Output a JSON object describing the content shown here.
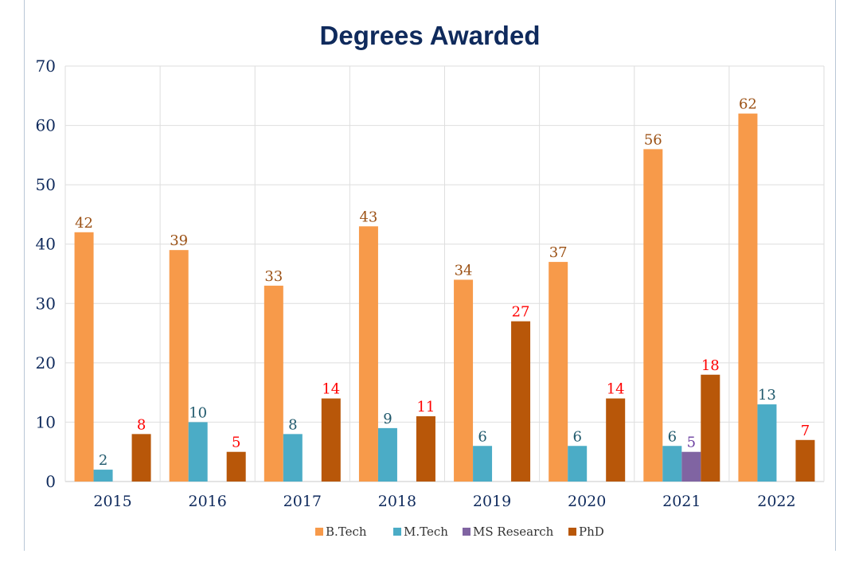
{
  "chart_data": {
    "type": "bar",
    "title": "Degrees Awarded",
    "xlabel": "",
    "ylabel": "",
    "ylim": [
      0,
      70
    ],
    "yticks": [
      0,
      10,
      20,
      30,
      40,
      50,
      60,
      70
    ],
    "grid": true,
    "legend_position": "bottom",
    "categories": [
      "2015",
      "2016",
      "2017",
      "2018",
      "2019",
      "2020",
      "2021",
      "2022"
    ],
    "series": [
      {
        "name": "B.Tech",
        "color": "#f79a4a",
        "label_color": "#9c5216",
        "values": [
          42,
          39,
          33,
          43,
          34,
          37,
          56,
          62
        ]
      },
      {
        "name": "M.Tech",
        "color": "#4bacc6",
        "label_color": "#215a6d",
        "values": [
          2,
          10,
          8,
          9,
          6,
          6,
          6,
          13
        ]
      },
      {
        "name": "MS Research",
        "color": "#8064a2",
        "label_color": "#6b3fa0",
        "values": [
          null,
          null,
          null,
          null,
          null,
          null,
          5,
          null
        ]
      },
      {
        "name": "PhD",
        "color": "#b85709",
        "label_color": "#ff0000",
        "values": [
          8,
          5,
          14,
          11,
          27,
          14,
          18,
          7
        ]
      }
    ]
  }
}
